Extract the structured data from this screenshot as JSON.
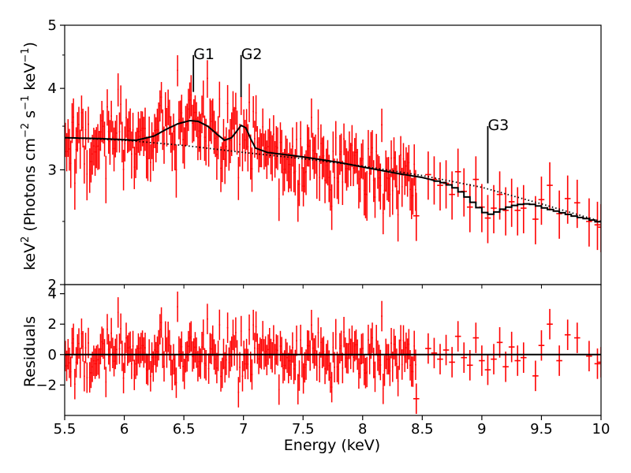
{
  "chart_data": {
    "type": "scatter",
    "title": "",
    "xlabel": "Energy (keV)",
    "xlim": [
      5.5,
      10
    ],
    "xticks": [
      5.5,
      6,
      6.5,
      7,
      7.5,
      8,
      8.5,
      9,
      9.5,
      10
    ],
    "xtick_labels": [
      "5.5",
      "6",
      "6.5",
      "7",
      "7.5",
      "8",
      "8.5",
      "9",
      "9.5",
      "10"
    ],
    "top_panel": {
      "ylabel_parts": [
        "keV",
        "2",
        " (Photons cm",
        "−2",
        " s",
        "−1",
        " keV",
        "−1",
        ")"
      ],
      "yscale": "log",
      "ylim": [
        2,
        5
      ],
      "yticks": [
        2,
        3,
        4,
        5
      ],
      "ytick_labels": [
        "2",
        "3",
        "4",
        "5"
      ],
      "model_line": {
        "name": "best-fit model",
        "style": "solid",
        "x": [
          5.5,
          5.8,
          6.1,
          6.25,
          6.35,
          6.45,
          6.55,
          6.62,
          6.7,
          6.78,
          6.84,
          6.9,
          6.95,
          6.98,
          7.02,
          7.06,
          7.1,
          7.2,
          7.5,
          7.8,
          8.0,
          8.3,
          8.5,
          8.7,
          8.8,
          8.85,
          8.9,
          8.95,
          9.0,
          9.05,
          9.1,
          9.15,
          9.2,
          9.25,
          9.3,
          9.35,
          9.4,
          9.45,
          9.5,
          9.6,
          9.7,
          9.8,
          9.9,
          10.0
        ],
        "y": [
          3.36,
          3.35,
          3.33,
          3.38,
          3.46,
          3.53,
          3.57,
          3.56,
          3.5,
          3.4,
          3.33,
          3.36,
          3.45,
          3.51,
          3.48,
          3.35,
          3.24,
          3.19,
          3.14,
          3.08,
          3.03,
          2.96,
          2.92,
          2.86,
          2.8,
          2.75,
          2.7,
          2.65,
          2.6,
          2.56,
          2.57,
          2.6,
          2.62,
          2.64,
          2.65,
          2.66,
          2.66,
          2.65,
          2.63,
          2.6,
          2.57,
          2.54,
          2.52,
          2.49
        ]
      },
      "continuum_line": {
        "name": "continuum",
        "style": "dotted",
        "x": [
          5.5,
          6.0,
          6.5,
          7.0,
          7.5,
          8.0,
          8.5,
          9.0,
          9.5,
          10.0
        ],
        "y": [
          3.36,
          3.33,
          3.27,
          3.19,
          3.12,
          3.04,
          2.94,
          2.82,
          2.66,
          2.5
        ]
      },
      "annotations": [
        {
          "text": "G1",
          "x": 6.58,
          "line_from_y": 3.95,
          "line_to_y": 4.5
        },
        {
          "text": "G2",
          "x": 6.98,
          "line_from_y": 3.88,
          "line_to_y": 4.5
        },
        {
          "text": "G3",
          "x": 9.05,
          "line_from_y": 2.86,
          "line_to_y": 3.5
        }
      ]
    },
    "bottom_panel": {
      "ylabel": "Residuals",
      "ylim": [
        -4,
        4.6
      ],
      "yticks": [
        -2,
        0,
        2,
        4
      ],
      "ytick_labels": [
        "−2",
        "0",
        "2",
        "4"
      ],
      "zero_line": 0
    },
    "high_energy_points": [
      {
        "x": 8.45,
        "y": 2.55,
        "r": -2.9
      },
      {
        "x": 8.55,
        "y": 2.95,
        "r": 0.4
      },
      {
        "x": 8.6,
        "y": 2.9,
        "r": 0.1
      },
      {
        "x": 8.65,
        "y": 2.84,
        "r": -0.3
      },
      {
        "x": 8.7,
        "y": 2.86,
        "r": 0.3
      },
      {
        "x": 8.75,
        "y": 2.75,
        "r": -0.5
      },
      {
        "x": 8.8,
        "y": 2.98,
        "r": 1.2
      },
      {
        "x": 8.85,
        "y": 2.78,
        "r": -0.2
      },
      {
        "x": 8.9,
        "y": 2.63,
        "r": -0.7
      },
      {
        "x": 8.95,
        "y": 2.9,
        "r": 1.1
      },
      {
        "x": 9.0,
        "y": 2.63,
        "r": -0.4
      },
      {
        "x": 9.05,
        "y": 2.53,
        "r": -1.0
      },
      {
        "x": 9.1,
        "y": 2.62,
        "r": -0.3
      },
      {
        "x": 9.15,
        "y": 2.75,
        "r": 0.8
      },
      {
        "x": 9.2,
        "y": 2.6,
        "r": -0.8
      },
      {
        "x": 9.25,
        "y": 2.68,
        "r": 0.5
      },
      {
        "x": 9.3,
        "y": 2.6,
        "r": -0.4
      },
      {
        "x": 9.35,
        "y": 2.62,
        "r": -0.2
      },
      {
        "x": 9.45,
        "y": 2.52,
        "r": -1.4
      },
      {
        "x": 9.5,
        "y": 2.7,
        "r": 0.6
      },
      {
        "x": 9.57,
        "y": 2.84,
        "r": 2.0
      },
      {
        "x": 9.65,
        "y": 2.57,
        "r": -0.4
      },
      {
        "x": 9.72,
        "y": 2.71,
        "r": 1.3
      },
      {
        "x": 9.8,
        "y": 2.67,
        "r": 1.1
      },
      {
        "x": 9.9,
        "y": 2.5,
        "r": -0.1
      },
      {
        "x": 9.97,
        "y": 2.47,
        "r": -0.6
      },
      {
        "x": 10.0,
        "y": 2.45,
        "r": -0.5
      }
    ],
    "dense_region": {
      "x_min": 5.5,
      "x_max": 8.45,
      "n_points": 260,
      "description_of_spread": "scatter around model"
    },
    "colors": {
      "data": "#ff0000",
      "model": "#000000",
      "axes": "#000000"
    }
  }
}
